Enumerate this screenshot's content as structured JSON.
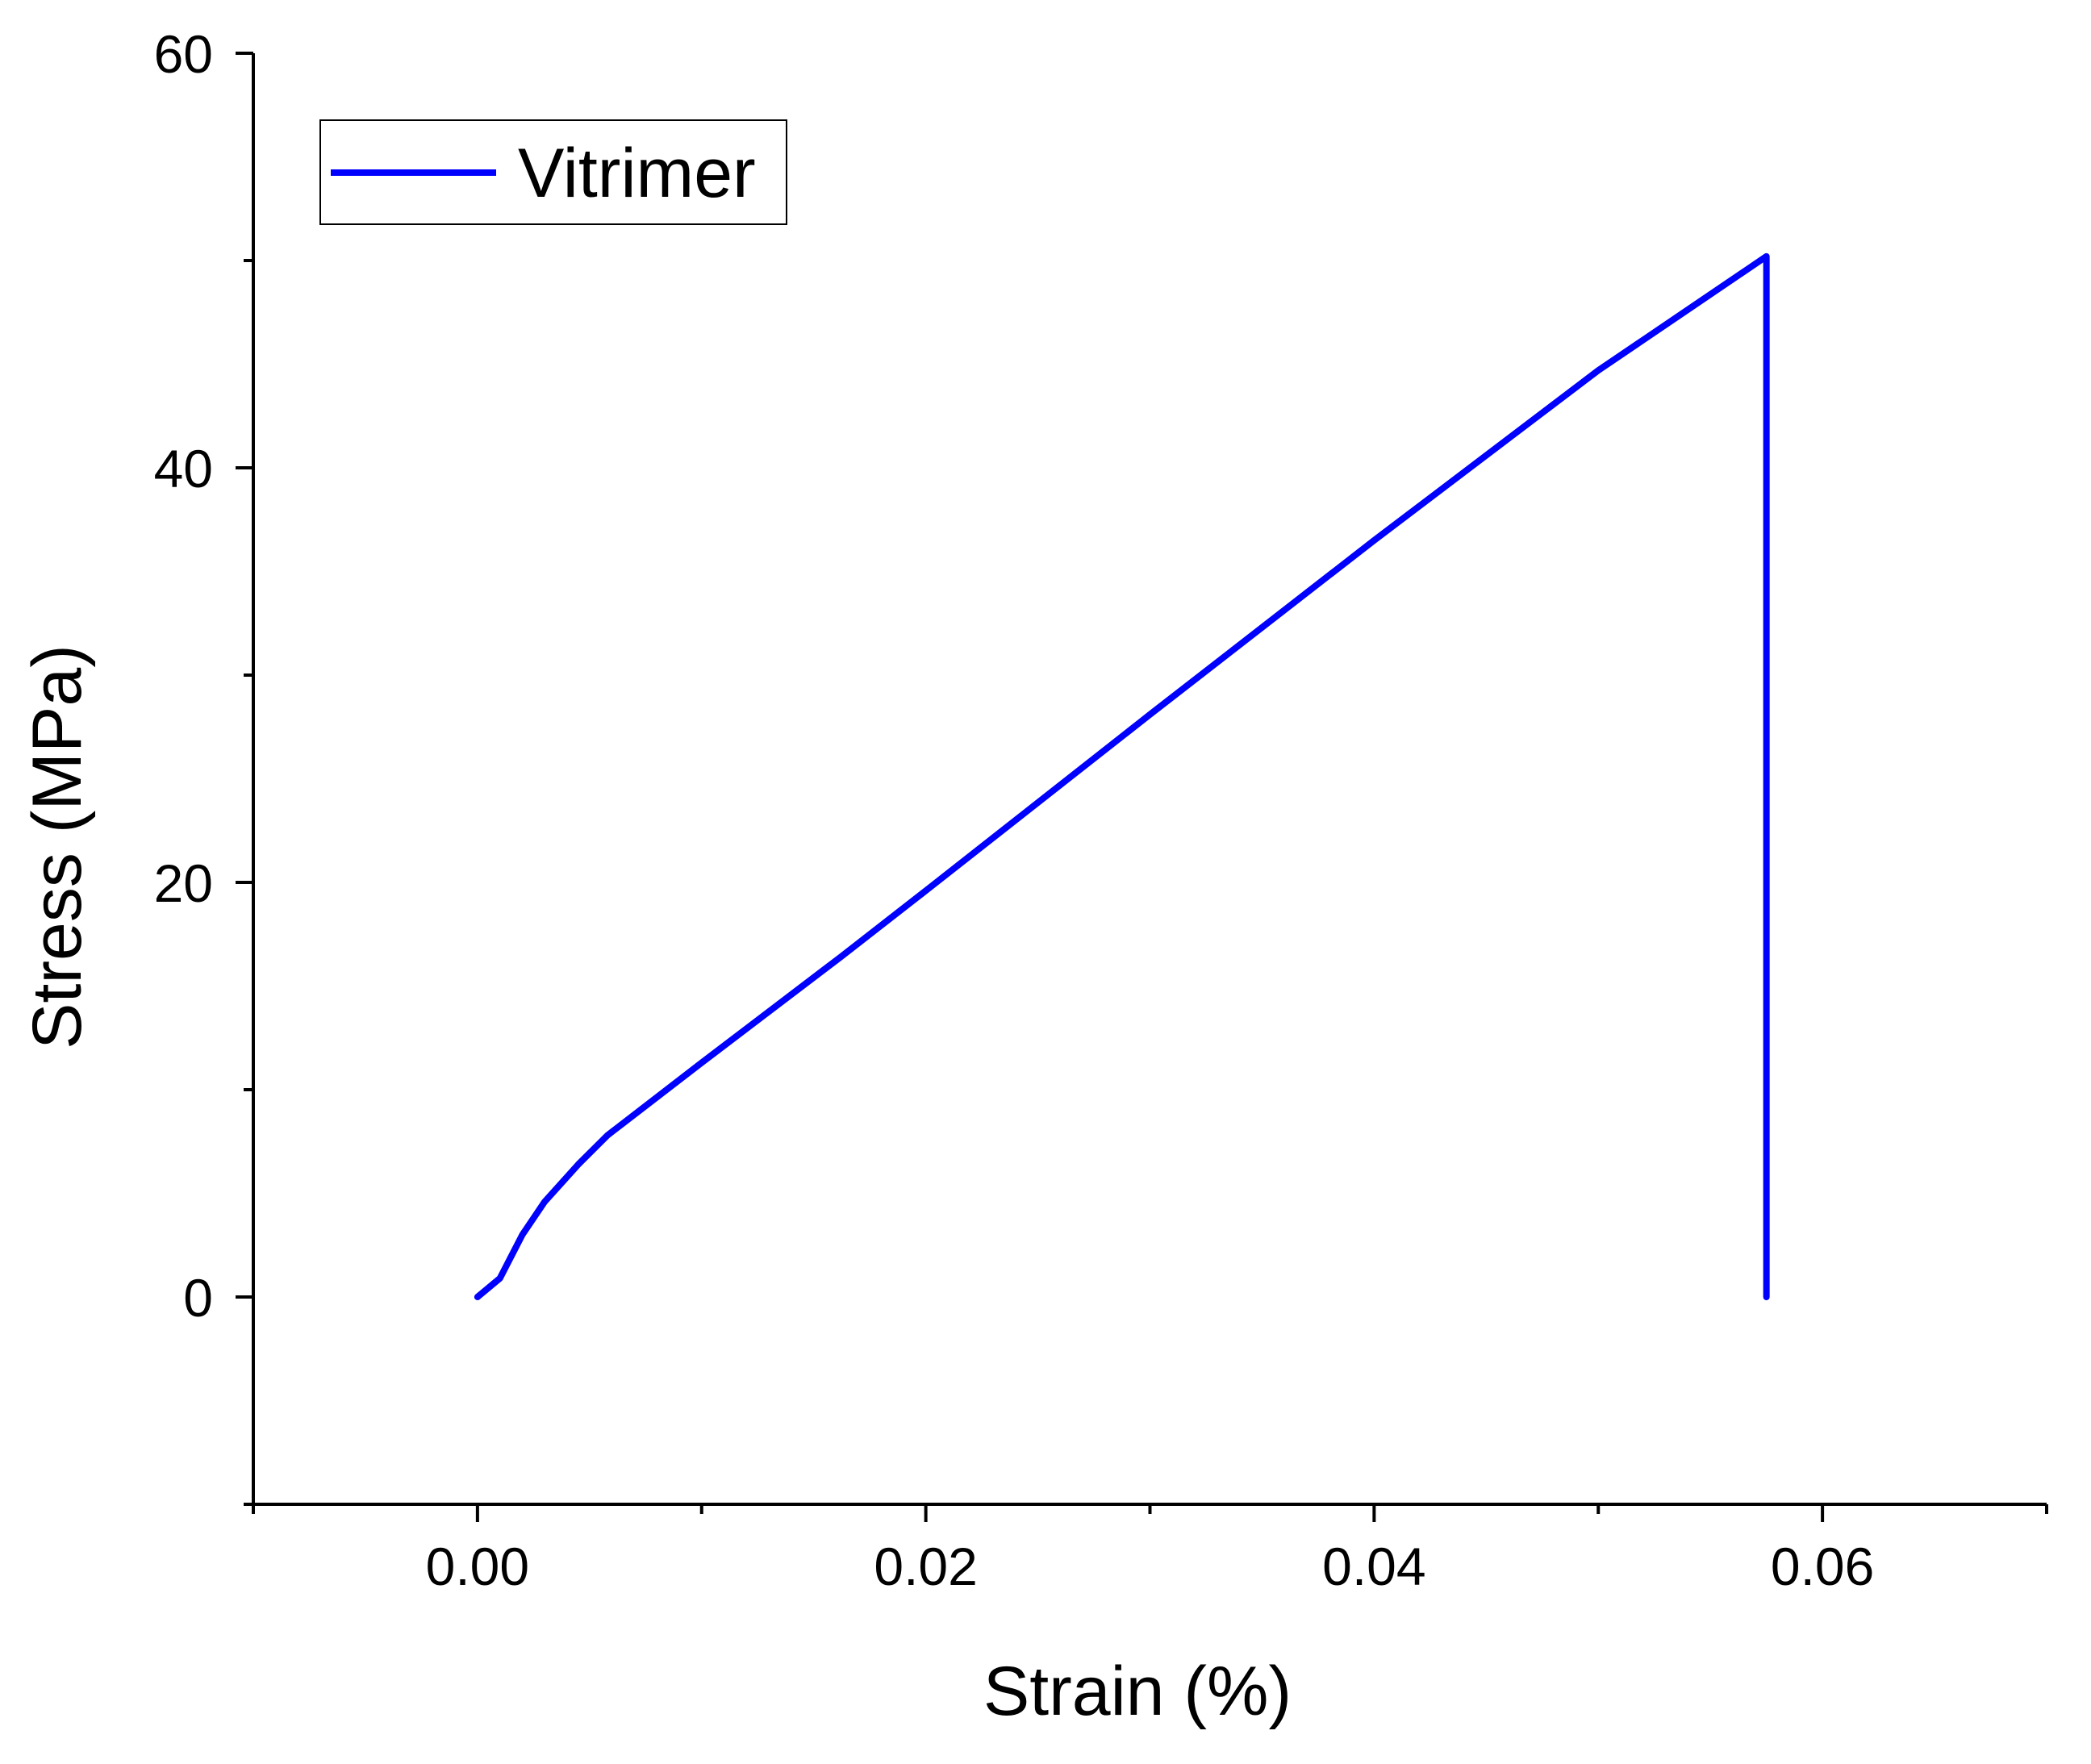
{
  "chart_data": {
    "type": "line",
    "x_label": "Strain (%)",
    "y_label": "Stress (MPa)",
    "x": [
      0,
      0.001,
      0.002,
      0.003,
      0.0045,
      0.0058,
      0.01,
      0.0162,
      0.02,
      0.03,
      0.04,
      0.05,
      0.0575,
      0.0575
    ],
    "series": [
      {
        "name": "Vitrimer",
        "color": "#0000ff",
        "values": [
          0,
          0.9,
          3.0,
          4.6,
          6.4,
          7.8,
          11.3,
          16.4,
          19.6,
          28.1,
          36.5,
          44.7,
          50.2,
          0
        ]
      }
    ],
    "xlim": [
      -0.01,
      0.07
    ],
    "xticks": [
      {
        "value": 0,
        "label": "0.00"
      },
      {
        "value": 0.02,
        "label": "0.02"
      },
      {
        "value": 0.04,
        "label": "0.04"
      },
      {
        "value": 0.06,
        "label": "0.06"
      }
    ],
    "xminorticks": [
      -0.01,
      0.01,
      0.03,
      0.05,
      0.07
    ],
    "ylim": [
      -10,
      60
    ],
    "yticks": [
      0,
      20,
      40,
      60
    ],
    "yminorticks": [
      -10,
      10,
      30,
      50
    ],
    "grid": false,
    "legend": "upper-left"
  }
}
